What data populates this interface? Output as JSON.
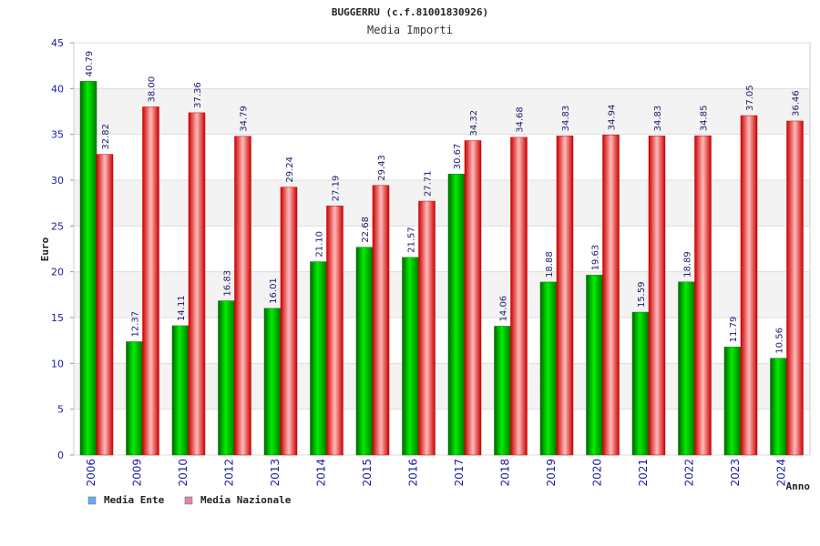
{
  "chart_data": {
    "type": "bar",
    "title": "BUGGERRU (c.f.81001830926)",
    "subtitle": "Media Importi",
    "ylabel": "Euro",
    "xlabel": "Anno",
    "ylim": [
      0,
      45
    ],
    "yticks": [
      0,
      5,
      10,
      15,
      20,
      25,
      30,
      35,
      40,
      45
    ],
    "grid": true,
    "legend_position": "bottom-left",
    "categories": [
      "2006",
      "2009",
      "2010",
      "2012",
      "2013",
      "2014",
      "2015",
      "2016",
      "2017",
      "2018",
      "2019",
      "2020",
      "2021",
      "2022",
      "2023",
      "2024"
    ],
    "series": [
      {
        "name": "Media Ente",
        "color": "#00cc00",
        "legend_color": "#66aaee",
        "values": [
          40.79,
          12.37,
          14.11,
          16.83,
          16.01,
          21.1,
          22.68,
          21.57,
          30.67,
          14.06,
          18.88,
          19.63,
          15.59,
          18.89,
          11.79,
          10.56
        ],
        "labels": [
          "40.79",
          "12.37",
          "14.11",
          "16.83",
          "16.01",
          "21.10",
          "22.68",
          "21.57",
          "30.67",
          "14.06",
          "18.88",
          "19.63",
          "15.59",
          "18.89",
          "11.79",
          "10.56"
        ]
      },
      {
        "name": "Media Nazionale",
        "color": "#ee2222",
        "legend_color": "#dd88aa",
        "values": [
          32.82,
          38.0,
          37.36,
          34.79,
          29.24,
          27.19,
          29.43,
          27.71,
          34.32,
          34.68,
          34.83,
          34.94,
          34.83,
          34.85,
          37.05,
          36.46
        ],
        "labels": [
          "32.82",
          "38.00",
          "37.36",
          "34.79",
          "29.24",
          "27.19",
          "29.43",
          "27.71",
          "34.32",
          "34.68",
          "34.83",
          "34.94",
          "34.83",
          "34.85",
          "37.05",
          "36.46"
        ]
      }
    ]
  }
}
